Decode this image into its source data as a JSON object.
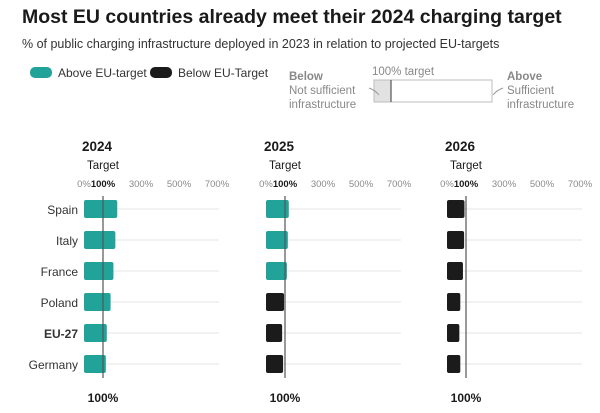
{
  "title": "Most EU countries already meet their 2024 charging target",
  "subtitle": "% of public charging infrastructure deployed in 2023 in relation to projected EU-targets",
  "colors": {
    "above": "#22a39a",
    "below": "#1b1b1b",
    "grid": "#e4e4e4",
    "target_line": "#555555"
  },
  "legend": [
    {
      "label": "Above EU-target",
      "color": "#22a39a"
    },
    {
      "label": "Below EU-Target",
      "color": "#1b1b1b"
    }
  ],
  "key": {
    "target_label": "100% target",
    "below_heading": "Below",
    "below_text": [
      "Not sufficient",
      "infrastructure"
    ],
    "above_heading": "Above",
    "above_text": [
      "Sufficient",
      "infrastructure"
    ]
  },
  "chart_data": {
    "type": "bar",
    "orientation": "horizontal",
    "categories": [
      "Spain",
      "Italy",
      "France",
      "Poland",
      "EU-27",
      "Germany"
    ],
    "highlight_category": "EU-27",
    "axis_ticks": [
      "0%",
      "100%",
      "300%",
      "500%",
      "700%"
    ],
    "tick_values": [
      0,
      100,
      300,
      500,
      700
    ],
    "xlim": [
      0,
      700
    ],
    "target_value": 100,
    "target_label": "Target",
    "target_bottom_label": "100%",
    "panels": [
      {
        "title": "2024",
        "values": [
          175,
          165,
          155,
          140,
          120,
          115
        ]
      },
      {
        "title": "2025",
        "values": [
          120,
          115,
          110,
          95,
          85,
          90
        ]
      },
      {
        "title": "2026",
        "values": [
          92,
          90,
          84,
          70,
          65,
          70
        ]
      }
    ]
  }
}
